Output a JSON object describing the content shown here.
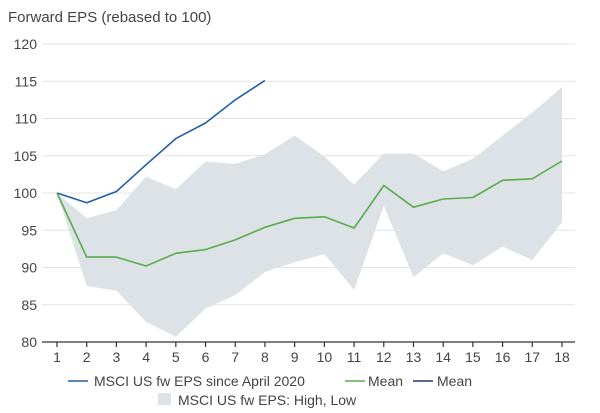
{
  "chart_data": {
    "type": "line",
    "title": "Forward EPS (rebased to 100)",
    "xlabel": "",
    "ylabel": "",
    "x": [
      1,
      2,
      3,
      4,
      5,
      6,
      7,
      8,
      9,
      10,
      11,
      12,
      13,
      14,
      15,
      16,
      17,
      18
    ],
    "ylim": [
      80,
      120
    ],
    "yticks": [
      80,
      85,
      90,
      95,
      100,
      105,
      110,
      115,
      120
    ],
    "grid": true,
    "legend_position": "bottom",
    "series": [
      {
        "name": "MSCI US fw EPS since April 2020",
        "color": "#1f5fa3",
        "x": [
          1,
          2,
          3,
          4,
          5,
          6,
          7,
          8
        ],
        "values": [
          100,
          98.7,
          100.2,
          103.8,
          107.3,
          109.4,
          112.5,
          115.1
        ]
      },
      {
        "name": "Mean",
        "color": "#5aab4f",
        "x": [
          1,
          2,
          3,
          4,
          5,
          6,
          7,
          8,
          9,
          10,
          11,
          12,
          13,
          14,
          15,
          16,
          17,
          18
        ],
        "values": [
          100,
          91.4,
          91.4,
          90.2,
          91.9,
          92.4,
          93.7,
          95.4,
          96.6,
          96.8,
          95.3,
          101.0,
          98.1,
          99.2,
          99.4,
          101.7,
          101.9,
          104.3
        ]
      },
      {
        "name": "Mean",
        "color": "#1f3f6e",
        "x": [],
        "values": []
      }
    ],
    "band": {
      "name": "MSCI US fw EPS: High, Low",
      "color": "#dde2e6",
      "x": [
        1,
        2,
        3,
        4,
        5,
        6,
        7,
        8,
        9,
        10,
        11,
        12,
        13,
        14,
        15,
        16,
        17,
        18
      ],
      "high": [
        100,
        96.6,
        97.7,
        102.2,
        100.5,
        104.2,
        103.9,
        105.2,
        107.7,
        104.9,
        101.1,
        105.3,
        105.3,
        102.9,
        104.6,
        107.7,
        110.8,
        114.2
      ],
      "low": [
        100,
        87.5,
        86.9,
        82.7,
        80.7,
        84.5,
        86.3,
        89.4,
        90.7,
        91.8,
        87.0,
        98.3,
        88.7,
        91.9,
        90.3,
        92.8,
        91.0,
        96.1
      ]
    }
  }
}
